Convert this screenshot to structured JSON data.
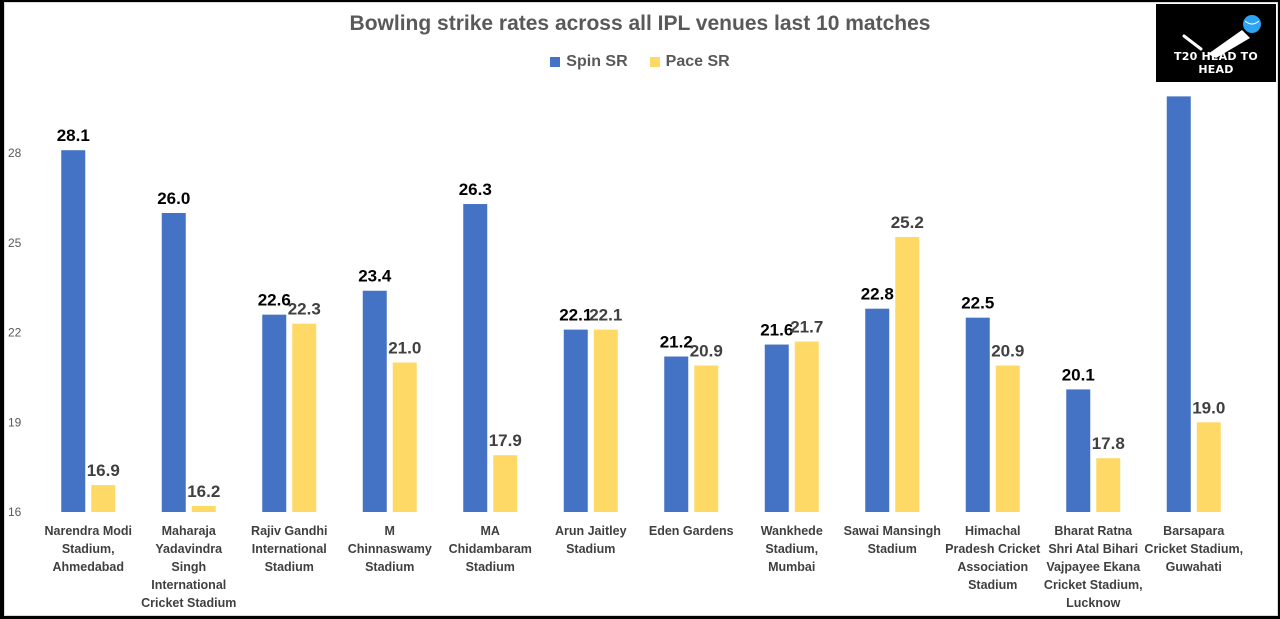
{
  "chart_data": {
    "type": "bar",
    "title": "Bowling strike rates across all IPL venues last 10 matches",
    "xlabel": "",
    "ylabel": "",
    "ylim": [
      16,
      30
    ],
    "yticks": [
      16,
      19,
      22,
      25,
      28
    ],
    "legend_position": "top-center",
    "categories": [
      "Narendra Modi Stadium, Ahmedabad",
      "Maharaja Yadavindra Singh International Cricket Stadium",
      "Rajiv Gandhi International Stadium",
      "M Chinnaswamy Stadium",
      "MA Chidambaram Stadium",
      "Arun Jaitley Stadium",
      "Eden Gardens",
      "Wankhede Stadium, Mumbai",
      "Sawai Mansingh Stadium",
      "Himachal Pradesh Cricket Association Stadium",
      "Bharat Ratna Shri Atal Bihari Vajpayee Ekana Cricket Stadium, Lucknow",
      "Barsapara Cricket Stadium, Guwahati"
    ],
    "category_lines": [
      [
        "Narendra Modi",
        "Stadium,",
        "Ahmedabad"
      ],
      [
        "Maharaja",
        "Yadavindra",
        "Singh",
        "International",
        "Cricket Stadium"
      ],
      [
        "Rajiv Gandhi",
        "International",
        "Stadium"
      ],
      [
        "M",
        "Chinnaswamy",
        "Stadium"
      ],
      [
        "MA",
        "Chidambaram",
        "Stadium"
      ],
      [
        "Arun Jaitley",
        "Stadium"
      ],
      [
        "Eden Gardens"
      ],
      [
        "Wankhede",
        "Stadium,",
        "Mumbai"
      ],
      [
        "Sawai Mansingh",
        "Stadium"
      ],
      [
        "Himachal",
        "Pradesh Cricket",
        "Association",
        "Stadium"
      ],
      [
        "Bharat Ratna",
        "Shri Atal Bihari",
        "Vajpayee Ekana",
        "Cricket Stadium,",
        "Lucknow"
      ],
      [
        "Barsapara",
        "Cricket Stadium,",
        "Guwahati"
      ]
    ],
    "series": [
      {
        "name": "Spin SR",
        "color": "#4472c4",
        "label_color": "#000000",
        "values": [
          28.1,
          26.0,
          22.6,
          23.4,
          26.3,
          22.1,
          21.2,
          21.6,
          22.8,
          22.5,
          20.1,
          29.9
        ],
        "labels": [
          "28.1",
          "26.0",
          "22.6",
          "23.4",
          "26.3",
          "22.1",
          "21.2",
          "21.6",
          "22.8",
          "22.5",
          "20.1",
          null
        ]
      },
      {
        "name": "Pace SR",
        "color": "#ffd966",
        "label_color": "#404040",
        "values": [
          16.9,
          16.2,
          22.3,
          21.0,
          17.9,
          22.1,
          20.9,
          21.7,
          25.2,
          20.9,
          17.8,
          19.0
        ],
        "labels": [
          "16.9",
          "16.2",
          "22.3",
          "21.0",
          "17.9",
          "22.1",
          "20.9",
          "21.7",
          "25.2",
          "20.9",
          "17.8",
          "19.0"
        ]
      }
    ]
  },
  "logo": {
    "text": "T20 HEAD TO HEAD"
  }
}
